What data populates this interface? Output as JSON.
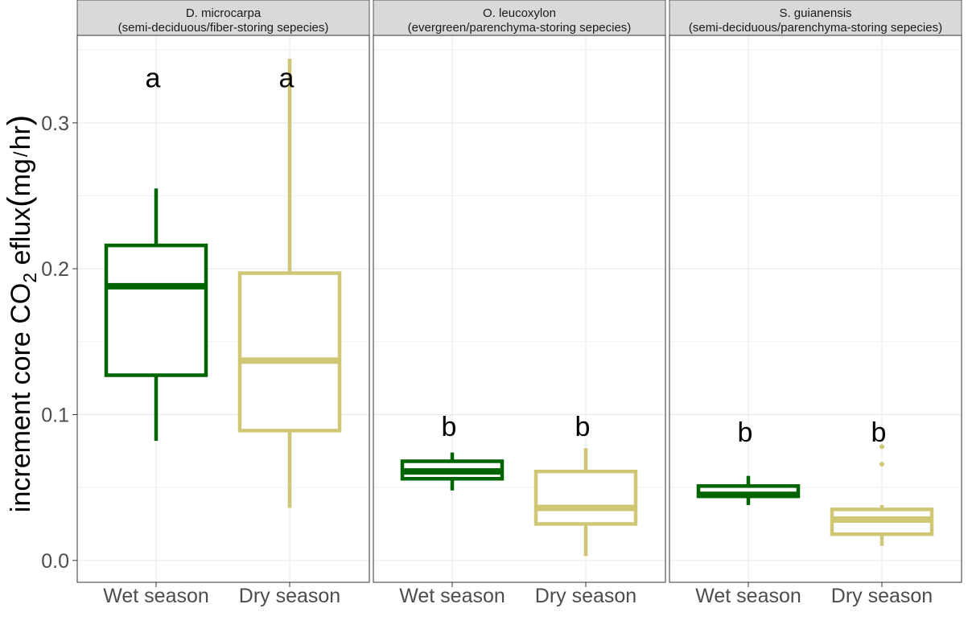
{
  "chart_data": {
    "type": "boxplot",
    "ylabel": {
      "prefix": "increment core CO",
      "subscript": "2",
      "middle": " eflux",
      "paren_open": "(",
      "unit_num": "mg",
      "unit_sep": "/",
      "unit_den": "hr",
      "paren_close": ")"
    },
    "ylim": [
      -0.015,
      0.36
    ],
    "yticks": [
      0.0,
      0.1,
      0.2,
      0.3
    ],
    "ytick_labels": [
      "0.0",
      "0.1",
      "0.2",
      "0.3"
    ],
    "categories": [
      "Wet season",
      "Dry season"
    ],
    "colors": {
      "Wet season": "#006400",
      "Dry season": "#CFC776"
    },
    "grid": true,
    "panels": [
      {
        "title_line1": "D. microcarpa",
        "title_line2": "(semi-deciduous/fiber-storing sepecies)",
        "boxes": [
          {
            "category": "Wet season",
            "whisker_low": 0.082,
            "q1": 0.127,
            "median": 0.188,
            "q3": 0.216,
            "whisker_high": 0.255,
            "outliers": [],
            "letter": "a",
            "letter_y": 0.331
          },
          {
            "category": "Dry season",
            "whisker_low": 0.036,
            "q1": 0.089,
            "median": 0.137,
            "q3": 0.197,
            "whisker_high": 0.344,
            "outliers": [],
            "letter": "a",
            "letter_y": 0.331
          }
        ]
      },
      {
        "title_line1": "O. leucoxylon",
        "title_line2": "(evergreen/parenchyma-storing sepecies)",
        "boxes": [
          {
            "category": "Wet season",
            "whisker_low": 0.048,
            "q1": 0.056,
            "median": 0.061,
            "q3": 0.068,
            "whisker_high": 0.074,
            "outliers": [],
            "letter": "b",
            "letter_y": 0.092
          },
          {
            "category": "Dry season",
            "whisker_low": 0.003,
            "q1": 0.025,
            "median": 0.036,
            "q3": 0.061,
            "whisker_high": 0.077,
            "outliers": [],
            "letter": "b",
            "letter_y": 0.092
          }
        ]
      },
      {
        "title_line1": "S. guianensis",
        "title_line2": "(semi-deciduous/parenchyma-storing sepecies)",
        "boxes": [
          {
            "category": "Wet season",
            "whisker_low": 0.038,
            "q1": 0.044,
            "median": 0.045,
            "q3": 0.051,
            "whisker_high": 0.058,
            "outliers": [],
            "letter": "b",
            "letter_y": 0.088
          },
          {
            "category": "Dry season",
            "whisker_low": 0.01,
            "q1": 0.018,
            "median": 0.028,
            "q3": 0.035,
            "whisker_high": 0.038,
            "outliers": [
              0.066,
              0.078
            ],
            "letter": "b",
            "letter_y": 0.088
          }
        ]
      }
    ]
  }
}
